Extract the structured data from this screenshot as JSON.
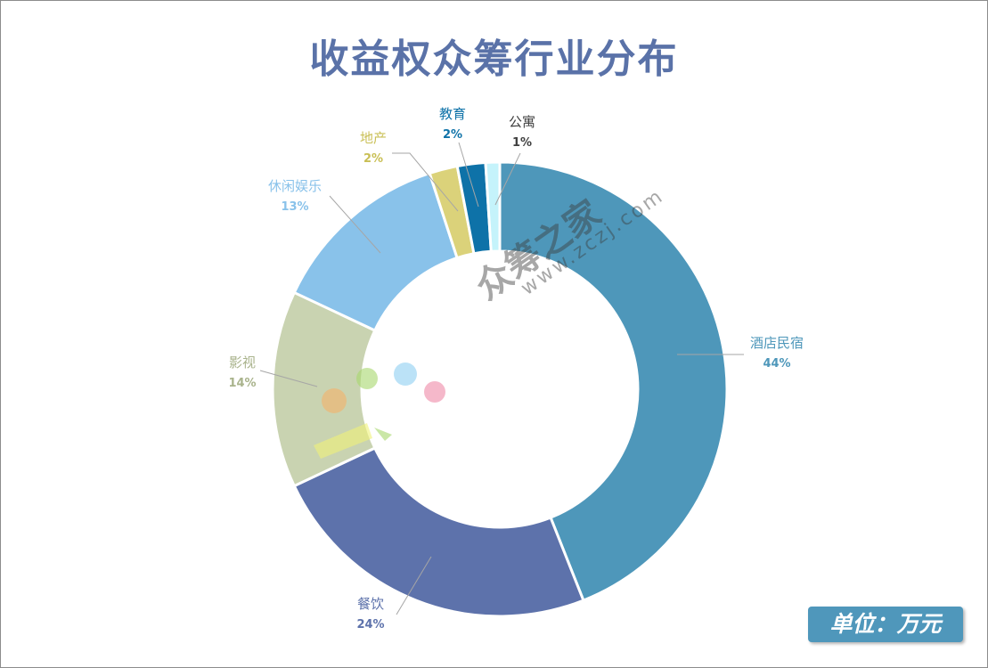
{
  "title": "收益权众筹行业分布",
  "unit_label": "单位：万元",
  "watermark": {
    "brand": "众筹之家",
    "url": "www.zczj.com"
  },
  "chart_data": {
    "type": "pie",
    "donut": true,
    "title": "收益权众筹行业分布",
    "start_angle_deg": 0,
    "direction": "clockwise",
    "slices": [
      {
        "label": "酒店民宿",
        "value": 44,
        "pct_label": "44%",
        "color": "#4e97ba"
      },
      {
        "label": "餐饮",
        "value": 24,
        "pct_label": "24%",
        "color": "#5d72ab"
      },
      {
        "label": "影视",
        "value": 14,
        "pct_label": "14%",
        "color": "#c9d3b1"
      },
      {
        "label": "休闲娱乐",
        "value": 13,
        "pct_label": "13%",
        "color": "#89c2ea"
      },
      {
        "label": "地产",
        "value": 2,
        "pct_label": "2%",
        "color": "#dbd27a"
      },
      {
        "label": "教育",
        "value": 2,
        "pct_label": "2%",
        "color": "#0e72a8"
      },
      {
        "label": "公寓",
        "value": 1,
        "pct_label": "1%",
        "color": "#c5f3fb"
      }
    ]
  }
}
